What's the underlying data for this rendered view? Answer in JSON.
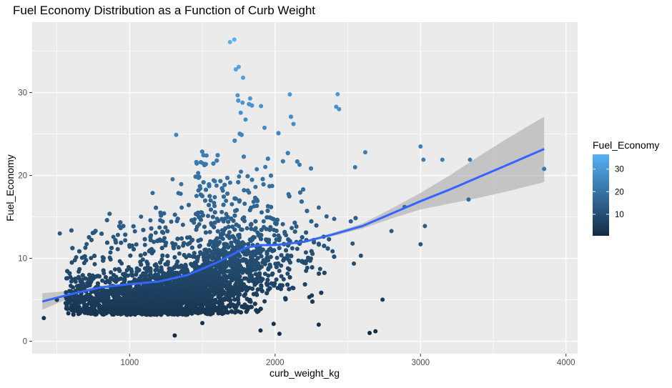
{
  "chart_data": {
    "type": "scatter",
    "title": "Fuel Economy Distribution as a Function of Curb Weight",
    "xlabel": "curb_weight_kg",
    "ylabel": "Fuel_Economy",
    "xlim": [
      330,
      4080
    ],
    "ylim": [
      -1.5,
      38.5
    ],
    "x_ticks": [
      1000,
      2000,
      3000,
      4000
    ],
    "y_ticks": [
      0,
      10,
      20,
      30
    ],
    "x_tick_labels": [
      "1000",
      "2000",
      "3000",
      "4000"
    ],
    "y_tick_labels": [
      "0",
      "10",
      "20",
      "30"
    ],
    "grid": true,
    "legend": {
      "title": "Fuel_Economy",
      "position": "right",
      "breaks": [
        10,
        20,
        30
      ],
      "break_labels": [
        "10",
        "20",
        "30"
      ],
      "range": [
        0.5,
        36.5
      ],
      "low_color": "#132B43",
      "high_color": "#56B1F7"
    },
    "points": [
      [
        410,
        2.8
      ],
      [
        500,
        5.0
      ],
      [
        520,
        13.0
      ],
      [
        560,
        4.6
      ],
      [
        610,
        6.5
      ],
      [
        650,
        8.4
      ],
      [
        700,
        9.8
      ],
      [
        760,
        9.3
      ],
      [
        800,
        4.2
      ],
      [
        830,
        4.4
      ],
      [
        1000,
        11.4
      ],
      [
        1190,
        5.0
      ],
      [
        1310,
        0.7
      ],
      [
        1320,
        24.9
      ],
      [
        1500,
        2.2
      ],
      [
        1720,
        36.4
      ],
      [
        1690,
        36.1
      ],
      [
        1730,
        32.8
      ],
      [
        1750,
        33.1
      ],
      [
        1780,
        31.8
      ],
      [
        1900,
        1.3
      ],
      [
        1990,
        2.1
      ],
      [
        2030,
        0.9
      ],
      [
        2300,
        2.0
      ],
      [
        2420,
        28.3
      ],
      [
        2430,
        29.8
      ],
      [
        2440,
        28.0
      ],
      [
        2550,
        21.0
      ],
      [
        2620,
        22.8
      ],
      [
        2650,
        1.0
      ],
      [
        2690,
        1.2
      ],
      [
        2800,
        13.3
      ],
      [
        2890,
        16.2
      ],
      [
        3000,
        23.5
      ],
      [
        3000,
        11.7
      ],
      [
        3020,
        21.9
      ],
      [
        3030,
        13.9
      ],
      [
        3150,
        21.9
      ],
      [
        3330,
        17.1
      ],
      [
        3340,
        21.9
      ],
      [
        3850,
        20.8
      ]
    ],
    "smooth_line": {
      "x": [
        400,
        600,
        800,
        1000,
        1200,
        1400,
        1600,
        1800,
        1900,
        2000,
        2200,
        2400,
        2600,
        2800,
        3000,
        3200,
        3400,
        3600,
        3850
      ],
      "y": [
        4.8,
        5.7,
        6.5,
        6.9,
        7.2,
        8.0,
        9.5,
        11.3,
        11.6,
        11.6,
        12.0,
        12.9,
        13.9,
        15.4,
        16.9,
        18.3,
        19.8,
        21.3,
        23.2
      ]
    },
    "confidence_band": {
      "x": [
        400,
        600,
        800,
        1000,
        1200,
        1400,
        1600,
        1800,
        1900,
        2000,
        2200,
        2400,
        2600,
        2800,
        3000,
        3200,
        3400,
        3600,
        3850
      ],
      "lower": [
        3.8,
        5.3,
        6.3,
        6.8,
        7.1,
        7.9,
        9.4,
        11.2,
        11.5,
        11.5,
        11.9,
        12.7,
        13.6,
        14.8,
        15.9,
        16.6,
        17.3,
        18.1,
        19.2
      ],
      "upper": [
        5.8,
        6.1,
        6.7,
        7.0,
        7.3,
        8.1,
        9.6,
        11.4,
        11.7,
        11.7,
        12.1,
        13.1,
        14.2,
        16.0,
        17.9,
        20.0,
        22.3,
        24.5,
        27.1
      ]
    },
    "colors": {
      "smooth_line": "#3366FF",
      "band": "#B3B3B3",
      "panel": "#EBEBEB",
      "grid": "#FFFFFF"
    }
  }
}
